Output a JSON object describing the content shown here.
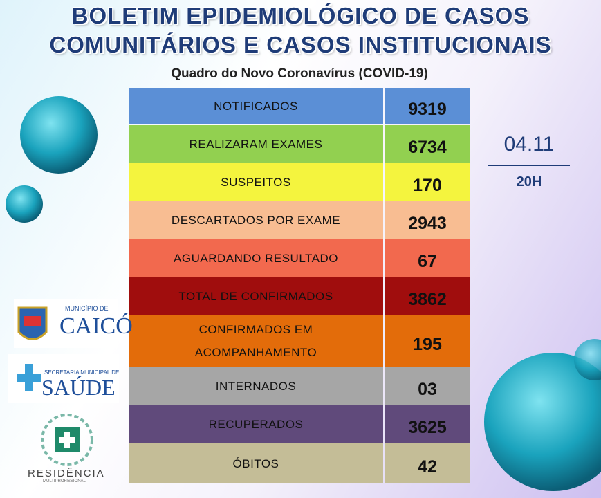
{
  "header": {
    "title_lines": [
      "BOLETIM EPIDEMIOLÓGICO DE CASOS",
      "COMUNITÁRIOS E CASOS INSTITUCIONAIS"
    ],
    "subtitle": "Quadro do Novo Coronavírus (COVID-19)"
  },
  "table": {
    "rows": [
      {
        "label": [
          "NOTIFICADOS"
        ],
        "value": "9319",
        "color": "#5b8fd6"
      },
      {
        "label": [
          "REALIZARAM EXAMES"
        ],
        "value": "6734",
        "color": "#92d050"
      },
      {
        "label": [
          "SUSPEITOS"
        ],
        "value": "170",
        "color": "#f4f43e"
      },
      {
        "label": [
          "DESCARTADOS POR EXAME"
        ],
        "value": "2943",
        "color": "#f8bd92"
      },
      {
        "label": [
          "AGUARDANDO RESULTADO"
        ],
        "value": "67",
        "color": "#f2694e"
      },
      {
        "label": [
          "TOTAL DE CONFIRMADOS"
        ],
        "value": "3862",
        "color": "#a00d0d"
      },
      {
        "label": [
          "CONFIRMADOS EM",
          "ACOMPANHAMENTO"
        ],
        "value": "195",
        "color": "#e36c0a"
      },
      {
        "label": [
          "INTERNADOS"
        ],
        "value": "03",
        "color": "#a6a6a6"
      },
      {
        "label": [
          "RECUPERADOS"
        ],
        "value": "3625",
        "color": "#604a7b"
      },
      {
        "label": [
          "ÓBITOS"
        ],
        "value": "42",
        "color": "#c4bd97"
      }
    ]
  },
  "date": "04.11",
  "time": "20H",
  "logos": {
    "city_prefix": "MUNICÍPIO DE",
    "city": "CAICÓ",
    "secretariat_prefix": "SECRETARIA MUNICIPAL DE",
    "secretariat": "SAÚDE",
    "residency": "RESIDÊNCIA",
    "residency_sub": "MULTIPROFISSIONAL"
  }
}
